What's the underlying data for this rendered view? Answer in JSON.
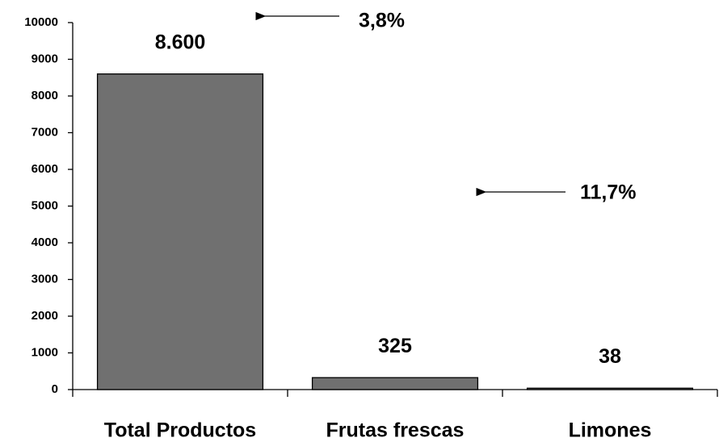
{
  "chart_data": {
    "type": "bar",
    "categories": [
      "Total Productos",
      "Frutas frescas",
      "Limones"
    ],
    "values": [
      8600,
      325,
      38
    ],
    "value_labels": [
      "8.600",
      "325",
      "38"
    ],
    "color": "#707070",
    "ylim": [
      0,
      10000
    ],
    "yticks": [
      0,
      1000,
      2000,
      3000,
      4000,
      5000,
      6000,
      7000,
      8000,
      9000,
      10000
    ],
    "grid": false,
    "annotations": [
      "3,8%",
      "11,7%"
    ]
  }
}
